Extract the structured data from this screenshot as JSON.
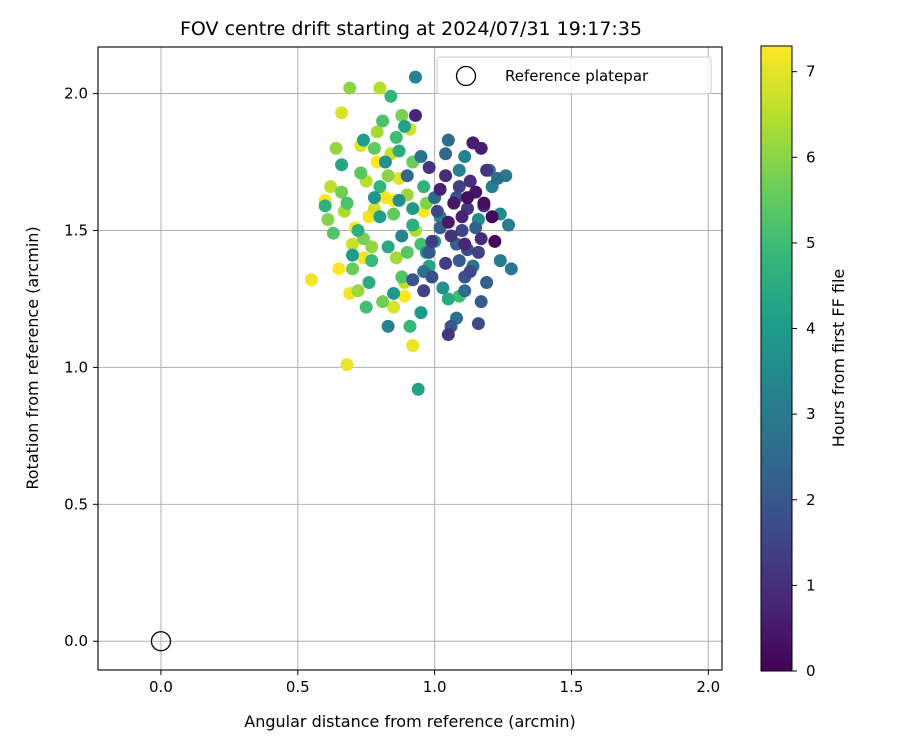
{
  "chart_data": {
    "type": "scatter",
    "title": "FOV centre drift starting at 2024/07/31 19:17:35",
    "xlabel": "Angular distance from reference (arcmin)",
    "ylabel": "Rotation from reference (arcmin)",
    "xlim": [
      -0.23,
      2.05
    ],
    "ylim": [
      -0.105,
      2.17
    ],
    "xticks": [
      0.0,
      0.5,
      1.0,
      1.5,
      2.0
    ],
    "xtick_labels": [
      "0.0",
      "0.5",
      "1.0",
      "1.5",
      "2.0"
    ],
    "yticks": [
      0.0,
      0.5,
      1.0,
      1.5,
      2.0
    ],
    "ytick_labels": [
      "0.0",
      "0.5",
      "1.0",
      "1.5",
      "2.0"
    ],
    "grid": true,
    "legend": {
      "placement": "top-right",
      "entries": [
        "Reference platepar"
      ]
    },
    "reference_point": {
      "x": 0.0,
      "y": 0.0,
      "marker": "open-circle",
      "label": "Reference platepar"
    },
    "colorbar": {
      "label": "Hours from first FF file",
      "range": [
        0,
        7.3
      ],
      "ticks": [
        0,
        1,
        2,
        3,
        4,
        5,
        6,
        7
      ],
      "tick_labels": [
        "0",
        "1",
        "2",
        "3",
        "4",
        "5",
        "6",
        "7"
      ],
      "colormap": "viridis",
      "colormap_stops": [
        "#440154",
        "#482878",
        "#3e4989",
        "#31688e",
        "#26828e",
        "#1f9e89",
        "#35b779",
        "#6ece58",
        "#b5de2b",
        "#fde725"
      ]
    },
    "points": [
      {
        "x": 1.22,
        "y": 1.46,
        "c": 0.1
      },
      {
        "x": 1.21,
        "y": 1.55,
        "c": 0.15
      },
      {
        "x": 1.12,
        "y": 1.62,
        "c": 0.3
      },
      {
        "x": 1.18,
        "y": 1.6,
        "c": 0.3
      },
      {
        "x": 1.15,
        "y": 1.64,
        "c": 0.4
      },
      {
        "x": 1.07,
        "y": 1.6,
        "c": 0.5
      },
      {
        "x": 1.05,
        "y": 1.53,
        "c": 0.5
      },
      {
        "x": 1.14,
        "y": 1.82,
        "c": 0.6
      },
      {
        "x": 1.17,
        "y": 1.8,
        "c": 0.6
      },
      {
        "x": 1.02,
        "y": 1.65,
        "c": 0.7
      },
      {
        "x": 1.1,
        "y": 1.55,
        "c": 0.7
      },
      {
        "x": 0.93,
        "y": 1.92,
        "c": 0.8
      },
      {
        "x": 1.11,
        "y": 1.45,
        "c": 0.8
      },
      {
        "x": 1.17,
        "y": 1.47,
        "c": 0.9
      },
      {
        "x": 1.04,
        "y": 1.7,
        "c": 0.9
      },
      {
        "x": 1.18,
        "y": 1.59,
        "c": 1.0
      },
      {
        "x": 1.13,
        "y": 1.68,
        "c": 1.0
      },
      {
        "x": 0.98,
        "y": 1.73,
        "c": 1.1
      },
      {
        "x": 1.06,
        "y": 1.48,
        "c": 1.1
      },
      {
        "x": 1.12,
        "y": 1.58,
        "c": 1.2
      },
      {
        "x": 1.05,
        "y": 1.12,
        "c": 1.2
      },
      {
        "x": 1.19,
        "y": 1.72,
        "c": 1.2
      },
      {
        "x": 1.04,
        "y": 1.38,
        "c": 1.3
      },
      {
        "x": 0.99,
        "y": 1.46,
        "c": 1.3
      },
      {
        "x": 1.16,
        "y": 1.42,
        "c": 1.4
      },
      {
        "x": 1.09,
        "y": 1.66,
        "c": 1.4
      },
      {
        "x": 0.96,
        "y": 1.28,
        "c": 1.5
      },
      {
        "x": 1.1,
        "y": 1.5,
        "c": 1.5
      },
      {
        "x": 1.01,
        "y": 1.57,
        "c": 1.6
      },
      {
        "x": 1.13,
        "y": 1.35,
        "c": 1.6
      },
      {
        "x": 1.16,
        "y": 1.16,
        "c": 1.7
      },
      {
        "x": 1.12,
        "y": 1.43,
        "c": 1.7
      },
      {
        "x": 0.99,
        "y": 1.33,
        "c": 1.8
      },
      {
        "x": 1.08,
        "y": 1.62,
        "c": 1.8
      },
      {
        "x": 0.92,
        "y": 1.32,
        "c": 1.9
      },
      {
        "x": 1.11,
        "y": 1.33,
        "c": 1.9
      },
      {
        "x": 1.06,
        "y": 1.15,
        "c": 2.0
      },
      {
        "x": 0.98,
        "y": 1.42,
        "c": 2.0
      },
      {
        "x": 1.09,
        "y": 1.39,
        "c": 2.1
      },
      {
        "x": 1.17,
        "y": 1.24,
        "c": 2.1
      },
      {
        "x": 1.02,
        "y": 1.51,
        "c": 2.2
      },
      {
        "x": 1.08,
        "y": 1.45,
        "c": 2.2
      },
      {
        "x": 1.15,
        "y": 1.51,
        "c": 2.3
      },
      {
        "x": 1.19,
        "y": 1.31,
        "c": 2.3
      },
      {
        "x": 0.9,
        "y": 1.7,
        "c": 2.4
      },
      {
        "x": 1.04,
        "y": 1.78,
        "c": 2.4
      },
      {
        "x": 1.11,
        "y": 1.28,
        "c": 2.5
      },
      {
        "x": 1.0,
        "y": 1.62,
        "c": 2.5
      },
      {
        "x": 1.05,
        "y": 1.83,
        "c": 2.6
      },
      {
        "x": 1.23,
        "y": 1.69,
        "c": 2.6
      },
      {
        "x": 1.08,
        "y": 1.18,
        "c": 2.7
      },
      {
        "x": 0.96,
        "y": 1.35,
        "c": 2.7
      },
      {
        "x": 1.14,
        "y": 1.37,
        "c": 2.8
      },
      {
        "x": 0.95,
        "y": 1.77,
        "c": 2.8
      },
      {
        "x": 1.2,
        "y": 1.72,
        "c": 2.9
      },
      {
        "x": 1.28,
        "y": 1.36,
        "c": 2.9
      },
      {
        "x": 1.24,
        "y": 1.39,
        "c": 3.0
      },
      {
        "x": 1.26,
        "y": 1.7,
        "c": 3.0
      },
      {
        "x": 1.27,
        "y": 1.52,
        "c": 3.1
      },
      {
        "x": 1.21,
        "y": 1.66,
        "c": 3.1
      },
      {
        "x": 1.11,
        "y": 1.77,
        "c": 3.2
      },
      {
        "x": 1.09,
        "y": 1.72,
        "c": 3.2
      },
      {
        "x": 0.93,
        "y": 2.06,
        "c": 3.3
      },
      {
        "x": 0.83,
        "y": 1.15,
        "c": 3.3
      },
      {
        "x": 1.02,
        "y": 1.55,
        "c": 3.4
      },
      {
        "x": 0.88,
        "y": 1.48,
        "c": 3.4
      },
      {
        "x": 1.16,
        "y": 1.54,
        "c": 3.5
      },
      {
        "x": 1.24,
        "y": 1.56,
        "c": 3.5
      },
      {
        "x": 0.97,
        "y": 1.42,
        "c": 3.6
      },
      {
        "x": 0.87,
        "y": 1.61,
        "c": 3.6
      },
      {
        "x": 1.03,
        "y": 1.29,
        "c": 3.7
      },
      {
        "x": 0.82,
        "y": 1.75,
        "c": 3.7
      },
      {
        "x": 0.78,
        "y": 1.62,
        "c": 3.8
      },
      {
        "x": 1.0,
        "y": 1.46,
        "c": 3.8
      },
      {
        "x": 0.85,
        "y": 1.27,
        "c": 3.9
      },
      {
        "x": 0.92,
        "y": 1.58,
        "c": 3.9
      },
      {
        "x": 0.95,
        "y": 1.2,
        "c": 4.0
      },
      {
        "x": 0.7,
        "y": 1.41,
        "c": 4.0
      },
      {
        "x": 0.8,
        "y": 1.55,
        "c": 4.1
      },
      {
        "x": 0.74,
        "y": 1.83,
        "c": 4.1
      },
      {
        "x": 0.89,
        "y": 1.88,
        "c": 4.2
      },
      {
        "x": 0.94,
        "y": 0.92,
        "c": 4.2
      },
      {
        "x": 0.98,
        "y": 1.37,
        "c": 4.3
      },
      {
        "x": 0.66,
        "y": 1.74,
        "c": 4.3
      },
      {
        "x": 0.83,
        "y": 1.44,
        "c": 4.4
      },
      {
        "x": 1.05,
        "y": 1.25,
        "c": 4.4
      },
      {
        "x": 0.76,
        "y": 1.31,
        "c": 4.5
      },
      {
        "x": 0.87,
        "y": 1.79,
        "c": 4.5
      },
      {
        "x": 0.6,
        "y": 1.59,
        "c": 4.6
      },
      {
        "x": 0.92,
        "y": 1.52,
        "c": 4.6
      },
      {
        "x": 0.72,
        "y": 1.5,
        "c": 4.7
      },
      {
        "x": 0.96,
        "y": 1.66,
        "c": 4.7
      },
      {
        "x": 0.84,
        "y": 1.99,
        "c": 4.8
      },
      {
        "x": 0.8,
        "y": 1.66,
        "c": 4.8
      },
      {
        "x": 0.91,
        "y": 1.15,
        "c": 4.9
      },
      {
        "x": 0.77,
        "y": 1.39,
        "c": 4.9
      },
      {
        "x": 1.09,
        "y": 1.26,
        "c": 5.0
      },
      {
        "x": 0.86,
        "y": 1.84,
        "c": 5.0
      },
      {
        "x": 0.75,
        "y": 1.22,
        "c": 5.1
      },
      {
        "x": 0.95,
        "y": 1.45,
        "c": 5.1
      },
      {
        "x": 0.68,
        "y": 1.6,
        "c": 5.2
      },
      {
        "x": 0.81,
        "y": 1.9,
        "c": 5.2
      },
      {
        "x": 0.88,
        "y": 1.33,
        "c": 5.3
      },
      {
        "x": 0.63,
        "y": 1.49,
        "c": 5.3
      },
      {
        "x": 0.73,
        "y": 1.71,
        "c": 5.4
      },
      {
        "x": 0.9,
        "y": 1.42,
        "c": 5.4
      },
      {
        "x": 0.78,
        "y": 1.8,
        "c": 5.5
      },
      {
        "x": 0.85,
        "y": 1.56,
        "c": 5.5
      },
      {
        "x": 0.7,
        "y": 1.36,
        "c": 5.6
      },
      {
        "x": 0.92,
        "y": 1.75,
        "c": 5.6
      },
      {
        "x": 0.66,
        "y": 1.64,
        "c": 5.7
      },
      {
        "x": 0.81,
        "y": 1.24,
        "c": 5.7
      },
      {
        "x": 0.88,
        "y": 1.92,
        "c": 5.8
      },
      {
        "x": 0.74,
        "y": 1.47,
        "c": 5.8
      },
      {
        "x": 0.97,
        "y": 1.6,
        "c": 5.9
      },
      {
        "x": 0.61,
        "y": 1.54,
        "c": 5.9
      },
      {
        "x": 0.69,
        "y": 2.02,
        "c": 6.0
      },
      {
        "x": 0.83,
        "y": 1.7,
        "c": 6.0
      },
      {
        "x": 0.77,
        "y": 1.44,
        "c": 6.1
      },
      {
        "x": 0.64,
        "y": 1.8,
        "c": 6.1
      },
      {
        "x": 0.9,
        "y": 1.63,
        "c": 6.2
      },
      {
        "x": 0.72,
        "y": 1.28,
        "c": 6.2
      },
      {
        "x": 0.79,
        "y": 1.86,
        "c": 6.3
      },
      {
        "x": 0.86,
        "y": 1.4,
        "c": 6.3
      },
      {
        "x": 0.67,
        "y": 1.57,
        "c": 6.4
      },
      {
        "x": 0.93,
        "y": 1.5,
        "c": 6.4
      },
      {
        "x": 0.8,
        "y": 2.02,
        "c": 6.5
      },
      {
        "x": 0.75,
        "y": 1.68,
        "c": 6.5
      },
      {
        "x": 0.89,
        "y": 1.31,
        "c": 6.6
      },
      {
        "x": 0.62,
        "y": 1.66,
        "c": 6.6
      },
      {
        "x": 0.84,
        "y": 1.78,
        "c": 6.7
      },
      {
        "x": 0.7,
        "y": 1.45,
        "c": 6.7
      },
      {
        "x": 0.91,
        "y": 1.87,
        "c": 6.8
      },
      {
        "x": 0.78,
        "y": 1.58,
        "c": 6.8
      },
      {
        "x": 0.66,
        "y": 1.93,
        "c": 6.9
      },
      {
        "x": 0.85,
        "y": 1.22,
        "c": 6.9
      },
      {
        "x": 0.73,
        "y": 1.81,
        "c": 7.0
      },
      {
        "x": 0.87,
        "y": 1.69,
        "c": 7.0
      },
      {
        "x": 0.68,
        "y": 1.01,
        "c": 7.1
      },
      {
        "x": 0.92,
        "y": 1.08,
        "c": 7.1
      },
      {
        "x": 0.55,
        "y": 1.32,
        "c": 7.15
      },
      {
        "x": 0.69,
        "y": 1.27,
        "c": 7.15
      },
      {
        "x": 0.76,
        "y": 1.55,
        "c": 7.2
      },
      {
        "x": 0.82,
        "y": 1.62,
        "c": 7.2
      },
      {
        "x": 0.71,
        "y": 1.51,
        "c": 7.25
      },
      {
        "x": 0.89,
        "y": 1.26,
        "c": 7.25
      },
      {
        "x": 0.96,
        "y": 1.57,
        "c": 7.3
      },
      {
        "x": 0.79,
        "y": 1.75,
        "c": 7.3
      },
      {
        "x": 0.65,
        "y": 1.36,
        "c": 7.3
      },
      {
        "x": 0.85,
        "y": 1.61,
        "c": 7.3
      },
      {
        "x": 0.6,
        "y": 1.61,
        "c": 7.3
      },
      {
        "x": 0.74,
        "y": 1.4,
        "c": 7.2
      }
    ]
  }
}
